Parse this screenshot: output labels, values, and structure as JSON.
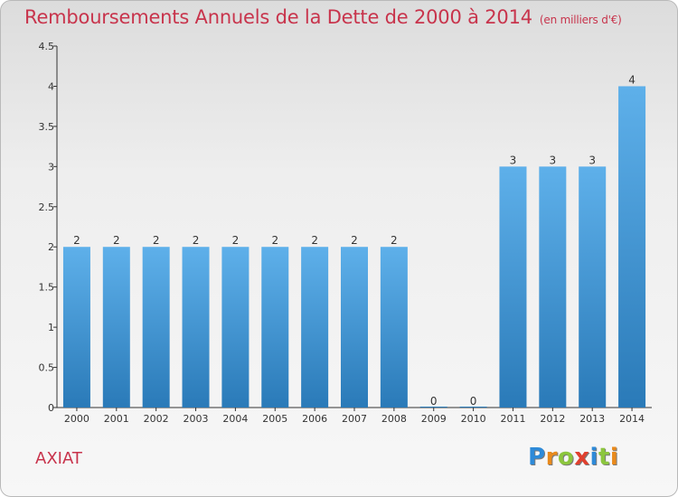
{
  "header": {
    "title": "Remboursements Annuels de la Dette de 2000 à 2014",
    "subtitle": "(en milliers d'€)"
  },
  "footer": {
    "commune": "AXIAT",
    "logo": {
      "letters": [
        "P",
        "r",
        "o",
        "x",
        "i",
        "t",
        "i"
      ],
      "colors": [
        "#2e8ad8",
        "#e98a1c",
        "#8cc63e",
        "#e0402e",
        "#2e8ad8",
        "#8cc63e",
        "#e98a1c"
      ]
    }
  },
  "chart_data": {
    "type": "bar",
    "title": "Remboursements Annuels de la Dette de 2000 à 2014",
    "subtitle": "(en milliers d'€)",
    "categories": [
      "2000",
      "2001",
      "2002",
      "2003",
      "2004",
      "2005",
      "2006",
      "2007",
      "2008",
      "2009",
      "2010",
      "2011",
      "2012",
      "2013",
      "2014"
    ],
    "values": [
      2,
      2,
      2,
      2,
      2,
      2,
      2,
      2,
      2,
      0,
      0,
      3,
      3,
      3,
      4
    ],
    "data_labels": [
      "2",
      "2",
      "2",
      "2",
      "2",
      "2",
      "2",
      "2",
      "2",
      "0",
      "0",
      "3",
      "3",
      "3",
      "4"
    ],
    "ylim": [
      0,
      4.5
    ],
    "yticks": [
      "0",
      "0.5",
      "1",
      "1.5",
      "2",
      "2.5",
      "3",
      "3.5",
      "4",
      "4.5"
    ],
    "ytick_values": [
      0,
      0.5,
      1,
      1.5,
      2,
      2.5,
      3,
      3.5,
      4,
      4.5
    ],
    "grid": false,
    "legend": "none",
    "bar_color_top": "#5eb0ea",
    "bar_color_bottom": "#2a7ab8"
  }
}
